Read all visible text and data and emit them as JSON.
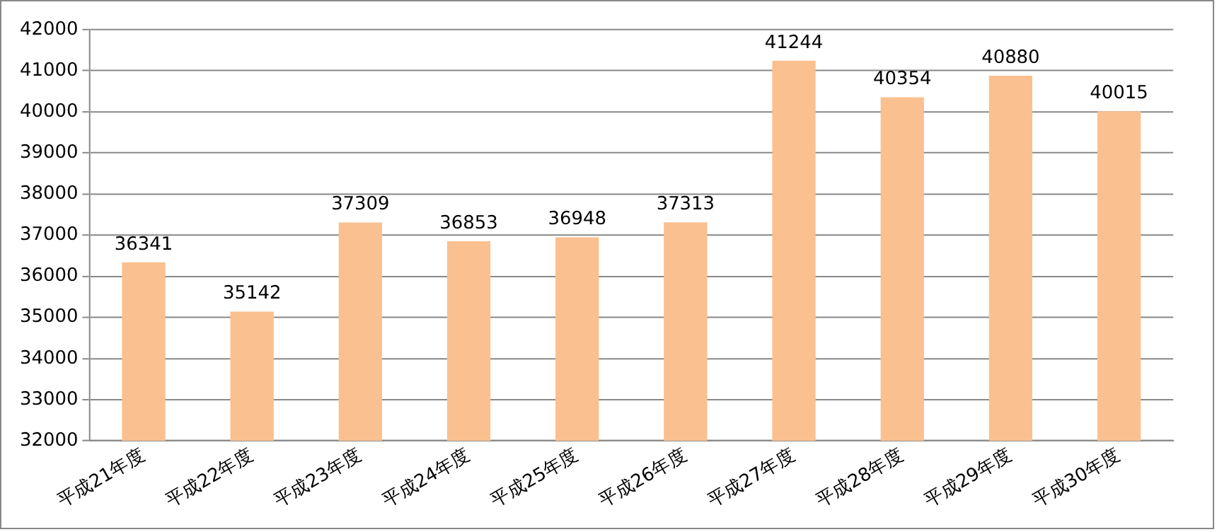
{
  "chart_data": {
    "type": "bar",
    "categories": [
      "平成21年度",
      "平成22年度",
      "平成23年度",
      "平成24年度",
      "平成25年度",
      "平成26年度",
      "平成27年度",
      "平成28年度",
      "平成29年度",
      "平成30年度"
    ],
    "values": [
      36341,
      35142,
      37309,
      36853,
      36948,
      37313,
      41244,
      40354,
      40880,
      40015
    ],
    "color": "#fac090",
    "ylim": [
      32000,
      42000
    ],
    "yticks": [
      32000,
      33000,
      34000,
      35000,
      36000,
      37000,
      38000,
      39000,
      40000,
      41000,
      42000
    ],
    "grid": "y",
    "data_labels": true,
    "legend": false
  }
}
